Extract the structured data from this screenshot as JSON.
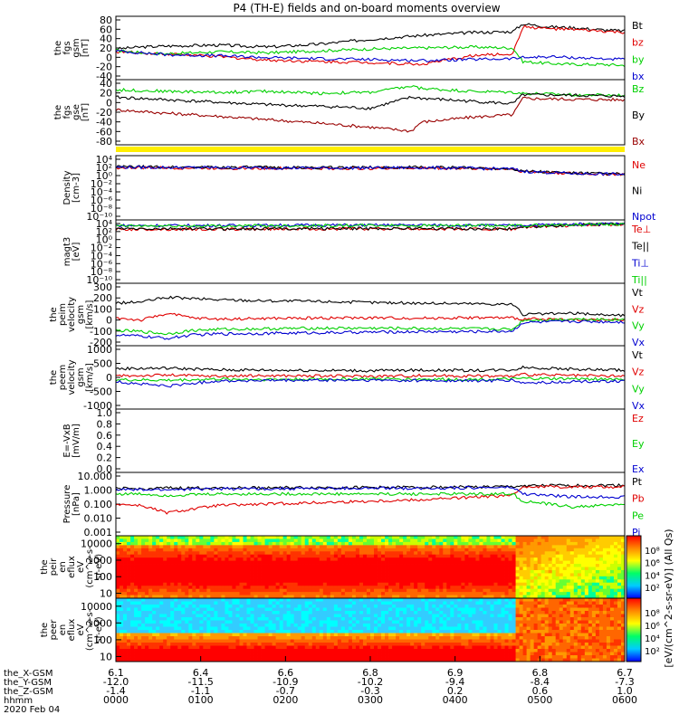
{
  "title": "P4 (TH-E) fields and on-board moments overview",
  "colors": {
    "black": "#000000",
    "red": "#e00000",
    "green": "#00d000",
    "blue": "#0000d0",
    "darkred": "#990000",
    "yellow": "#ffee00"
  },
  "chart_data": [
    {
      "type": "line",
      "panel": "fgs-gsm",
      "ylabel": [
        "the",
        "fgs",
        "gsm",
        "[nT]"
      ],
      "yticks": [
        "80",
        "60",
        "40",
        "20",
        "0",
        "-20",
        "-40"
      ],
      "ylim": [
        -40,
        80
      ],
      "series": [
        {
          "name": "Bt",
          "color": "black",
          "x": [
            0,
            0.05,
            0.1,
            0.2,
            0.3,
            0.4,
            0.5,
            0.6,
            0.7,
            0.78,
            0.8,
            0.85,
            0.9,
            0.95,
            1.0
          ],
          "y": [
            18,
            22,
            24,
            26,
            22,
            28,
            38,
            46,
            52,
            54,
            70,
            64,
            62,
            58,
            55
          ]
        },
        {
          "name": "bz",
          "color": "red",
          "x": [
            0,
            0.05,
            0.1,
            0.2,
            0.3,
            0.4,
            0.5,
            0.6,
            0.7,
            0.78,
            0.8,
            0.85,
            0.9,
            0.95,
            1.0
          ],
          "y": [
            12,
            10,
            8,
            2,
            -5,
            -8,
            -10,
            -14,
            4,
            8,
            64,
            60,
            58,
            55,
            52
          ]
        },
        {
          "name": "by",
          "color": "green",
          "x": [
            0,
            0.05,
            0.1,
            0.2,
            0.3,
            0.4,
            0.5,
            0.6,
            0.7,
            0.78,
            0.8,
            0.85,
            0.9,
            0.95,
            1.0
          ],
          "y": [
            15,
            10,
            8,
            12,
            10,
            14,
            18,
            20,
            22,
            20,
            -8,
            -12,
            -14,
            -14,
            -16
          ]
        },
        {
          "name": "bx",
          "color": "blue",
          "x": [
            0,
            0.05,
            0.1,
            0.2,
            0.3,
            0.4,
            0.5,
            0.6,
            0.7,
            0.78,
            0.8,
            0.85,
            0.9,
            0.95,
            1.0
          ],
          "y": [
            14,
            10,
            6,
            4,
            0,
            -2,
            -4,
            -6,
            -4,
            -2,
            0,
            2,
            0,
            -2,
            -4
          ]
        }
      ],
      "legend": [
        "Bt",
        "bz",
        "by",
        "bx"
      ]
    },
    {
      "type": "line",
      "panel": "fgs-gse",
      "ylabel": [
        "the",
        "fgs",
        "gse",
        "[nT]"
      ],
      "yticks": [
        "40",
        "20",
        "0",
        "-20",
        "-40",
        "-60",
        "-80"
      ],
      "ylim": [
        -80,
        40
      ],
      "series": [
        {
          "name": "Bz",
          "color": "green",
          "x": [
            0,
            0.1,
            0.2,
            0.3,
            0.4,
            0.5,
            0.58,
            0.6,
            0.7,
            0.78,
            0.8,
            0.9,
            1.0
          ],
          "y": [
            25,
            22,
            20,
            22,
            18,
            20,
            32,
            28,
            22,
            20,
            18,
            15,
            14
          ]
        },
        {
          "name": "By",
          "color": "black",
          "x": [
            0,
            0.1,
            0.2,
            0.3,
            0.4,
            0.5,
            0.58,
            0.6,
            0.7,
            0.78,
            0.8,
            0.9,
            1.0
          ],
          "y": [
            10,
            5,
            0,
            -5,
            -8,
            -12,
            10,
            8,
            2,
            -3,
            15,
            14,
            12
          ]
        },
        {
          "name": "Bx",
          "color": "darkred",
          "x": [
            0,
            0.1,
            0.2,
            0.3,
            0.4,
            0.5,
            0.58,
            0.6,
            0.7,
            0.78,
            0.8,
            0.9,
            1.0
          ],
          "y": [
            -15,
            -22,
            -28,
            -35,
            -42,
            -50,
            -58,
            -40,
            -30,
            -25,
            8,
            6,
            5
          ]
        }
      ],
      "legend": [
        "Bz",
        "By",
        "Bx"
      ]
    },
    {
      "type": "line",
      "panel": "density",
      "ylabel": [
        "Density",
        "[cm-3]"
      ],
      "yticks": [
        "10⁴",
        "10²",
        "10⁰",
        "10⁻²",
        "10⁻⁴",
        "10⁻⁶",
        "10⁻⁸",
        "10⁻¹⁰"
      ],
      "ylim": [
        -10,
        4
      ],
      "yscale": "log",
      "series": [
        {
          "name": "Ne",
          "color": "red",
          "x": [
            0,
            0.2,
            0.4,
            0.6,
            0.78,
            0.8,
            0.9,
            1.0
          ],
          "y": [
            1.8,
            1.7,
            1.6,
            1.7,
            1.5,
            0.9,
            0.4,
            0.2
          ]
        },
        {
          "name": "Ni",
          "color": "black",
          "x": [
            0,
            0.2,
            0.4,
            0.6,
            0.78,
            0.8,
            0.9,
            1.0
          ],
          "y": [
            2.0,
            1.9,
            1.8,
            1.9,
            1.6,
            1.0,
            0.5,
            0.3
          ]
        },
        {
          "name": "Npot",
          "color": "blue",
          "x": [
            0,
            0.2,
            0.4,
            0.6,
            0.78,
            0.8,
            0.9,
            1.0
          ],
          "y": [
            1.9,
            1.8,
            1.7,
            1.8,
            1.5,
            0.9,
            0.4,
            0.2
          ]
        }
      ],
      "legend": [
        "Ne",
        "Ni",
        "Npot"
      ]
    },
    {
      "type": "line",
      "panel": "magt3",
      "ylabel": [
        "magt3",
        "[eV]"
      ],
      "yticks": [
        "10⁴",
        "10²",
        "10⁰",
        "10⁻²",
        "10⁻⁴",
        "10⁻⁶",
        "10⁻⁸",
        "10⁻¹⁰"
      ],
      "ylim": [
        -10,
        4
      ],
      "yscale": "log",
      "series": [
        {
          "name": "Te⊥",
          "color": "red",
          "x": [
            0,
            0.2,
            0.4,
            0.6,
            0.78,
            0.8,
            0.9,
            1.0
          ],
          "y": [
            2.4,
            2.4,
            2.5,
            2.5,
            2.4,
            2.9,
            3.3,
            3.6
          ]
        },
        {
          "name": "Te||",
          "color": "black",
          "x": [
            0,
            0.2,
            0.4,
            0.6,
            0.78,
            0.8,
            0.9,
            1.0
          ],
          "y": [
            2.5,
            2.5,
            2.6,
            2.6,
            2.5,
            3.0,
            3.4,
            3.7
          ]
        },
        {
          "name": "Ti⊥",
          "color": "blue",
          "x": [
            0,
            0.2,
            0.4,
            0.6,
            0.78,
            0.8,
            0.9,
            1.0
          ],
          "y": [
            3.3,
            3.3,
            3.4,
            3.4,
            3.3,
            3.4,
            3.6,
            3.8
          ]
        },
        {
          "name": "Ti||",
          "color": "green",
          "x": [
            0,
            0.2,
            0.4,
            0.6,
            0.78,
            0.8,
            0.9,
            1.0
          ],
          "y": [
            3.2,
            3.2,
            3.3,
            3.3,
            3.2,
            3.3,
            3.5,
            3.7
          ]
        }
      ],
      "legend": [
        "Te⊥",
        "Te||",
        "Ti⊥",
        "Ti||"
      ]
    },
    {
      "type": "line",
      "panel": "peim-velocity",
      "ylabel": [
        "the",
        "peim",
        "velocity",
        "gsm",
        "[km/s]"
      ],
      "yticks": [
        "300",
        "200",
        "100",
        "0",
        "-100",
        "-200"
      ],
      "ylim": [
        -200,
        300
      ],
      "series": [
        {
          "name": "Vt",
          "color": "black",
          "x": [
            0,
            0.05,
            0.1,
            0.15,
            0.2,
            0.3,
            0.4,
            0.5,
            0.6,
            0.7,
            0.78,
            0.8,
            0.9,
            1.0
          ],
          "y": [
            150,
            160,
            200,
            190,
            180,
            170,
            165,
            155,
            150,
            145,
            140,
            50,
            60,
            40
          ]
        },
        {
          "name": "Vz",
          "color": "red",
          "x": [
            0,
            0.05,
            0.1,
            0.15,
            0.2,
            0.3,
            0.4,
            0.5,
            0.6,
            0.7,
            0.78,
            0.8,
            0.9,
            1.0
          ],
          "y": [
            20,
            0,
            60,
            20,
            10,
            15,
            20,
            20,
            18,
            22,
            20,
            10,
            5,
            0
          ]
        },
        {
          "name": "Vy",
          "color": "green",
          "x": [
            0,
            0.05,
            0.1,
            0.15,
            0.2,
            0.3,
            0.4,
            0.5,
            0.6,
            0.7,
            0.78,
            0.8,
            0.9,
            1.0
          ],
          "y": [
            -90,
            -100,
            -120,
            -90,
            -80,
            -75,
            -70,
            -70,
            -72,
            -75,
            -80,
            0,
            10,
            5
          ]
        },
        {
          "name": "Vx",
          "color": "blue",
          "x": [
            0,
            0.05,
            0.1,
            0.15,
            0.2,
            0.3,
            0.4,
            0.5,
            0.6,
            0.7,
            0.78,
            0.8,
            0.9,
            1.0
          ],
          "y": [
            -130,
            -140,
            -160,
            -130,
            -120,
            -115,
            -110,
            -105,
            -100,
            -100,
            -95,
            -20,
            -10,
            -15
          ]
        }
      ],
      "legend": [
        "Vt",
        "Vz",
        "Vy",
        "Vx"
      ]
    },
    {
      "type": "line",
      "panel": "peem-velocity",
      "ylabel": [
        "the",
        "peem",
        "velocity",
        "gsm",
        "[km/s]"
      ],
      "yticks": [
        "1000",
        "500",
        "0",
        "-500",
        "-1000"
      ],
      "ylim": [
        -1000,
        1000
      ],
      "series": [
        {
          "name": "Vt",
          "color": "black",
          "x": [
            0,
            0.1,
            0.2,
            0.3,
            0.4,
            0.5,
            0.6,
            0.7,
            0.78,
            0.8,
            0.9,
            1.0
          ],
          "y": [
            300,
            320,
            260,
            250,
            240,
            230,
            250,
            240,
            260,
            350,
            280,
            250
          ]
        },
        {
          "name": "Vz",
          "color": "red",
          "x": [
            0,
            0.1,
            0.2,
            0.3,
            0.4,
            0.5,
            0.6,
            0.7,
            0.78,
            0.8,
            0.9,
            1.0
          ],
          "y": [
            50,
            80,
            40,
            60,
            50,
            40,
            60,
            50,
            40,
            100,
            60,
            40
          ]
        },
        {
          "name": "Vy",
          "color": "green",
          "x": [
            0,
            0.1,
            0.2,
            0.3,
            0.4,
            0.5,
            0.6,
            0.7,
            0.78,
            0.8,
            0.9,
            1.0
          ],
          "y": [
            -80,
            -100,
            -60,
            -70,
            -60,
            -50,
            -60,
            -70,
            -60,
            -40,
            -50,
            -60
          ]
        },
        {
          "name": "Vx",
          "color": "blue",
          "x": [
            0,
            0.1,
            0.2,
            0.3,
            0.4,
            0.5,
            0.6,
            0.7,
            0.78,
            0.8,
            0.9,
            1.0
          ],
          "y": [
            -150,
            -300,
            -120,
            -110,
            -100,
            -100,
            -110,
            -120,
            -100,
            -200,
            -150,
            -120
          ]
        }
      ],
      "legend": [
        "Vt",
        "Vz",
        "Vy",
        "Vx"
      ]
    },
    {
      "type": "line",
      "panel": "efield",
      "ylabel": [
        "E=-VxB",
        "[mV/m]"
      ],
      "yticks": [
        "1.0",
        "0.8",
        "0.6",
        "0.4",
        "0.2",
        "0.0"
      ],
      "ylim": [
        0,
        1
      ],
      "series": [
        {
          "name": "Ez",
          "color": "red",
          "x": [],
          "y": []
        },
        {
          "name": "Ey",
          "color": "green",
          "x": [],
          "y": []
        },
        {
          "name": "Ex",
          "color": "blue",
          "x": [],
          "y": []
        }
      ],
      "legend": [
        "Ez",
        "Ey",
        "Ex"
      ]
    },
    {
      "type": "line",
      "panel": "pressure",
      "ylabel": [
        "Pressure",
        "[nPa]"
      ],
      "yticks": [
        "10.000",
        "1.000",
        "0.100",
        "0.010",
        "0.001"
      ],
      "ylim": [
        -3,
        1
      ],
      "yscale": "log",
      "series": [
        {
          "name": "Pt",
          "color": "black",
          "x": [
            0,
            0.05,
            0.1,
            0.2,
            0.4,
            0.6,
            0.78,
            0.8,
            0.9,
            1.0
          ],
          "y": [
            0.08,
            0.04,
            0.1,
            0.12,
            0.14,
            0.16,
            0.2,
            0.26,
            0.28,
            0.3
          ]
        },
        {
          "name": "Pb",
          "color": "red",
          "x": [
            0,
            0.05,
            0.1,
            0.2,
            0.4,
            0.6,
            0.78,
            0.8,
            0.9,
            1.0
          ],
          "y": [
            -1.0,
            -1.1,
            -1.6,
            -1.1,
            -0.9,
            -0.7,
            -0.4,
            0.22,
            0.2,
            0.18
          ]
        },
        {
          "name": "Pe",
          "color": "green",
          "x": [
            0,
            0.05,
            0.1,
            0.2,
            0.4,
            0.6,
            0.78,
            0.8,
            0.9,
            1.0
          ],
          "y": [
            -0.3,
            -0.3,
            -0.4,
            -0.3,
            -0.3,
            -0.3,
            -0.3,
            -0.8,
            -1.2,
            -1.0
          ]
        },
        {
          "name": "Pi",
          "color": "blue",
          "x": [
            0,
            0.05,
            0.1,
            0.2,
            0.4,
            0.6,
            0.78,
            0.8,
            0.9,
            1.0
          ],
          "y": [
            0.02,
            -0.02,
            0.0,
            0.06,
            0.08,
            0.1,
            0.15,
            -0.3,
            -0.5,
            -0.5
          ]
        }
      ],
      "legend": [
        "Pt",
        "Pb",
        "Pe",
        "Pi"
      ]
    },
    {
      "type": "heatmap",
      "panel": "peir-en-eflux",
      "ylabel": [
        "the",
        "peir",
        "en",
        "eflux",
        "eV",
        "(cm^2-s-",
        "sr-eV)"
      ],
      "yticks": [
        "10000",
        "1000",
        "100",
        "10"
      ],
      "yscale": "log",
      "ylim": [
        5,
        30000
      ]
    },
    {
      "type": "heatmap",
      "panel": "peer-en-eflux",
      "ylabel": [
        "the",
        "peer",
        "en",
        "eflux",
        "eV",
        "(cm^2-s-",
        "sr-eV)"
      ],
      "yticks": [
        "10000",
        "1000",
        "100",
        "10"
      ],
      "yscale": "log",
      "ylim": [
        5,
        30000
      ]
    }
  ],
  "colorbar": {
    "label": "[eV/(cm^2-s-sr-eV)] (All Qs)",
    "ticks_upper": [
      "10⁸",
      "10⁶",
      "10⁴",
      "10²"
    ],
    "ticks_lower": [
      "10⁸",
      "10⁶",
      "10⁴",
      "10²"
    ]
  },
  "xaxis": {
    "row_labels": [
      "the_X-GSM",
      "the_Y-GSM",
      "the_Z-GSM",
      "hhmm",
      "2020 Feb 04"
    ],
    "ticks": [
      {
        "x_gsm": "6.1",
        "y_gsm": "-12.0",
        "z_gsm": "-1.4",
        "hhmm": "0000"
      },
      {
        "x_gsm": "6.4",
        "y_gsm": "-11.5",
        "z_gsm": "-1.1",
        "hhmm": "0100"
      },
      {
        "x_gsm": "6.6",
        "y_gsm": "-10.9",
        "z_gsm": "-0.7",
        "hhmm": "0200"
      },
      {
        "x_gsm": "6.8",
        "y_gsm": "-10.2",
        "z_gsm": "-0.3",
        "hhmm": "0300"
      },
      {
        "x_gsm": "6.9",
        "y_gsm": "-9.4",
        "z_gsm": "0.2",
        "hhmm": "0400"
      },
      {
        "x_gsm": "6.8",
        "y_gsm": "-8.4",
        "z_gsm": "0.6",
        "hhmm": "0500"
      },
      {
        "x_gsm": "6.7",
        "y_gsm": "-7.3",
        "z_gsm": "1.0",
        "hhmm": "0600"
      }
    ]
  }
}
